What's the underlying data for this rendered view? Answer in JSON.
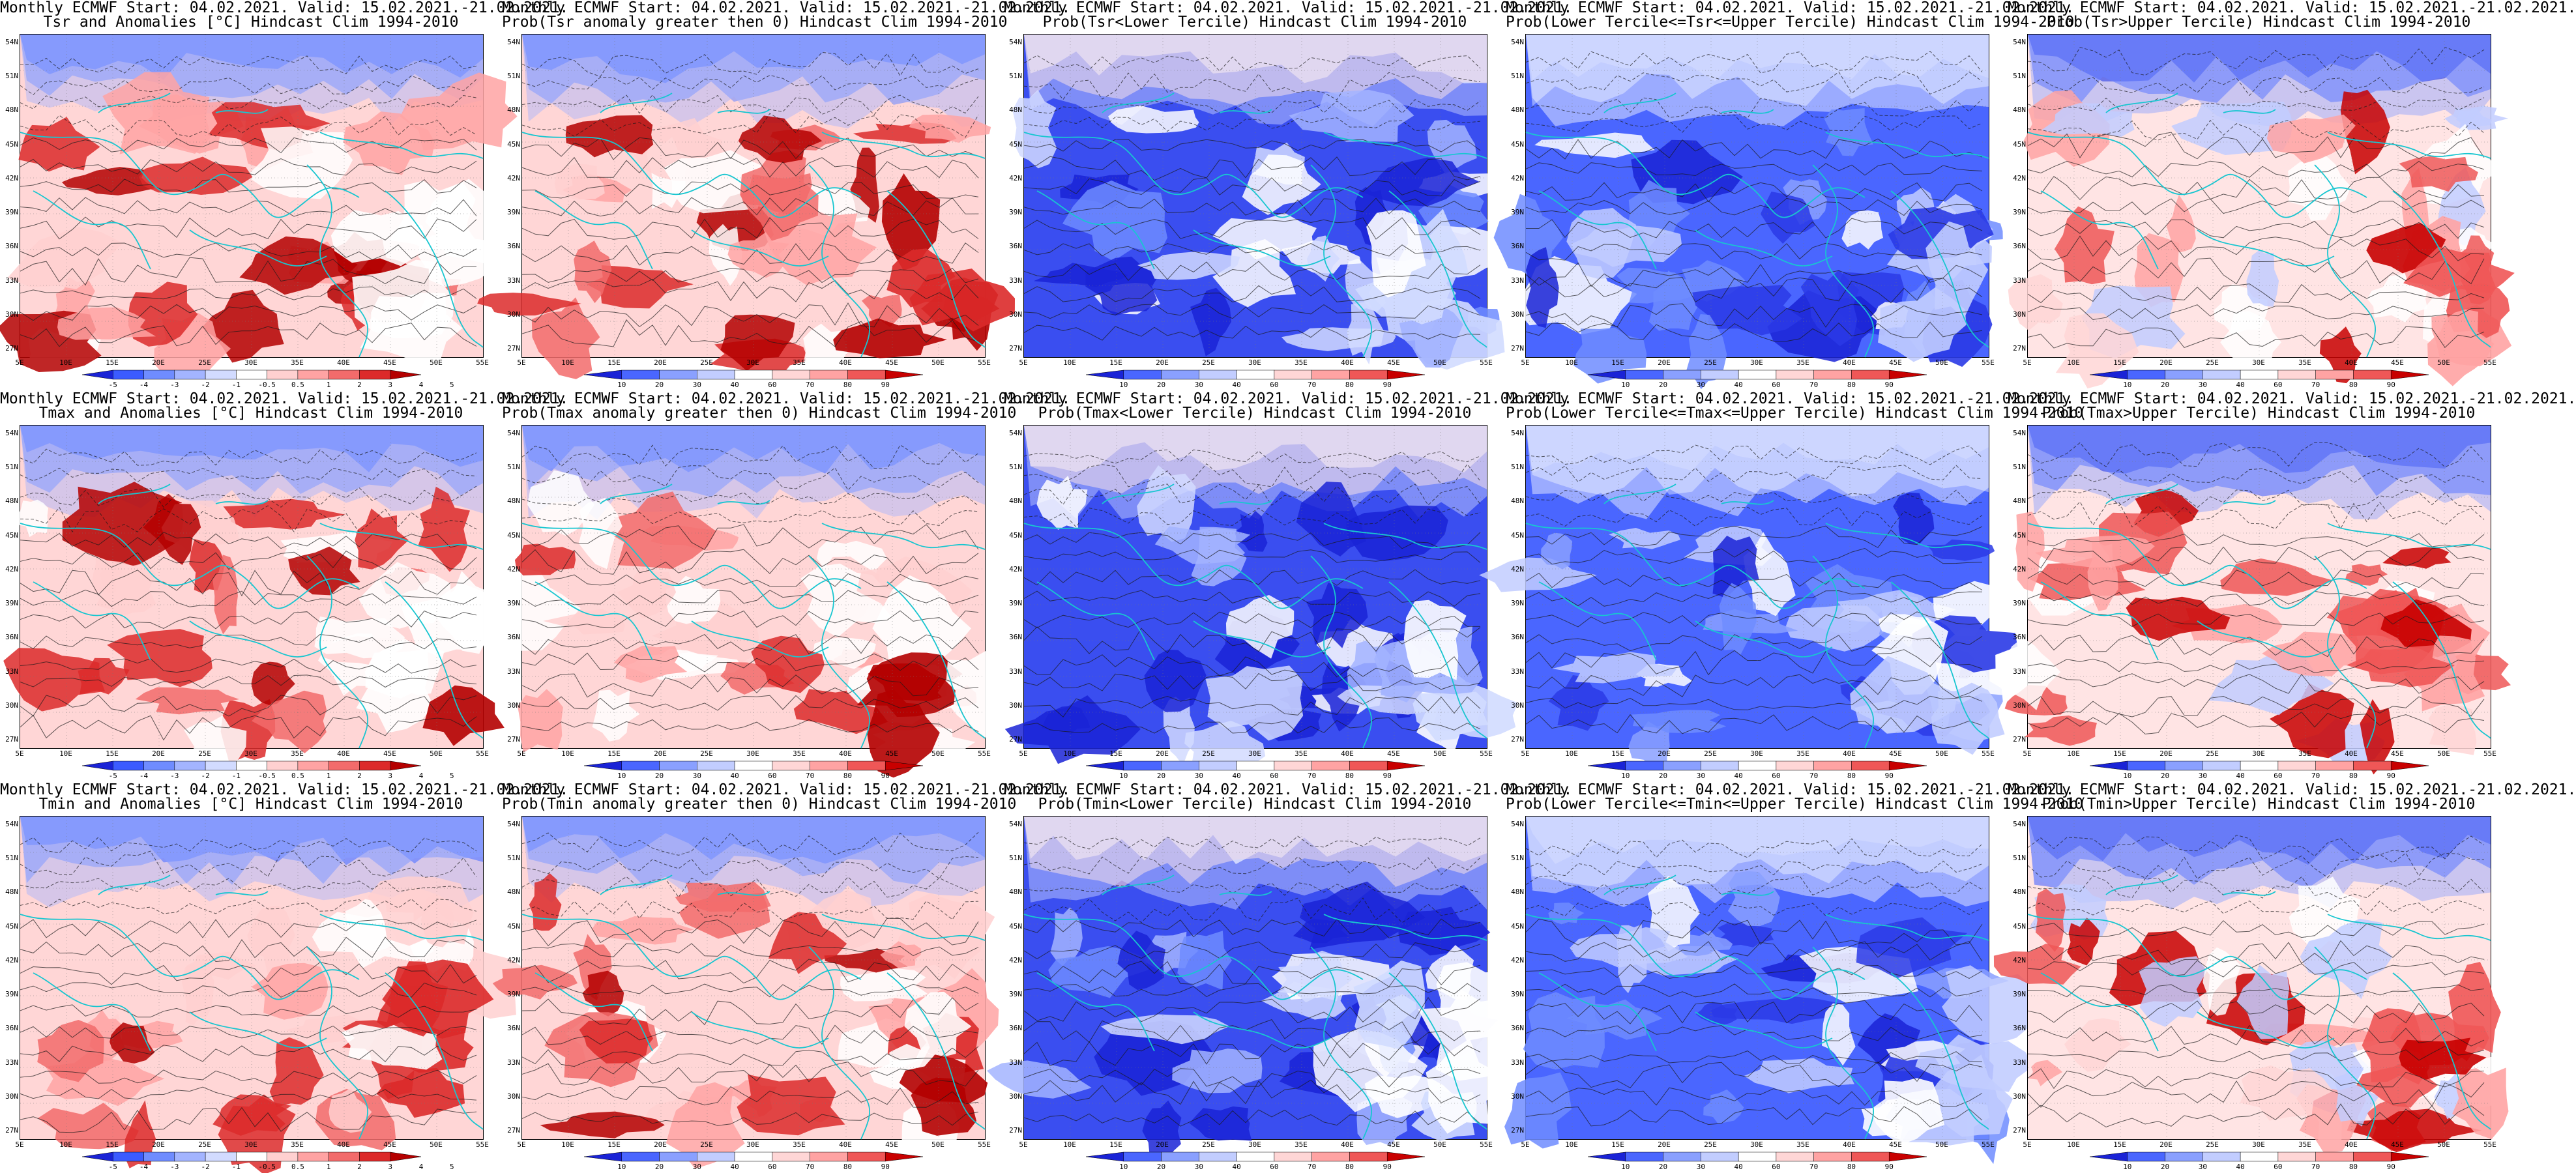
{
  "figure": {
    "latitudes": [
      "54N",
      "51N",
      "48N",
      "45N",
      "42N",
      "39N",
      "36N",
      "33N",
      "30N",
      "27N"
    ],
    "longitudes": [
      "5E",
      "10E",
      "15E",
      "20E",
      "25E",
      "30E",
      "35E",
      "40E",
      "45E",
      "50E",
      "55E"
    ],
    "colors": {
      "coast": "#18c6d0",
      "contour": "#1a1a1a",
      "anom_scale": [
        "#1a23d6",
        "#3b5bff",
        "#6f8cff",
        "#a3b4ff",
        "#d2dbff",
        "#ffffff",
        "#ffd0d0",
        "#ffa3a3",
        "#f26b6b",
        "#dc2a2a",
        "#b40000"
      ],
      "prob_scale": [
        "#1a23d6",
        "#4a66ff",
        "#8aa0ff",
        "#c2cdff",
        "#ffffff",
        "#ffd6d6",
        "#ffa3a3",
        "#ef5757",
        "#c80000"
      ]
    },
    "anom_ticks": [
      "-5",
      "-4",
      "-3",
      "-2",
      "-1",
      "-0.5",
      "0.5",
      "1",
      "2",
      "3",
      "4",
      "5"
    ],
    "prob_ticks": [
      "10",
      "20",
      "30",
      "40",
      "60",
      "70",
      "80",
      "90"
    ]
  },
  "panels": [
    {
      "line1": "Monthly ECMWF Start: 04.02.2021. Valid: 15.02.2021.-21.02.2021.",
      "line2": "Tsr and Anomalies [°C] Hindcast Clim 1994-2010",
      "scale": "anom",
      "style": "warm"
    },
    {
      "line1": "Monthly ECMWF Start: 04.02.2021. Valid: 15.02.2021.-21.02.2021.",
      "line2": "Prob(Tsr anomaly greater then 0) Hindcast Clim 1994-2010",
      "scale": "prob",
      "style": "warm"
    },
    {
      "line1": "Monthly ECMWF Start: 04.02.2021. Valid: 15.02.2021.-21.02.2021.",
      "line2": "Prob(Tsr<Lower Tercile) Hindcast Clim 1994-2010",
      "scale": "prob",
      "style": "cold"
    },
    {
      "line1": "Monthly ECMWF Start: 04.02.2021. Valid: 15.02.2021.-21.02.2021.",
      "line2": "Prob(Lower Tercile<=Tsr<=Upper Tercile) Hindcast Clim 1994-2010",
      "scale": "prob",
      "style": "mid"
    },
    {
      "line1": "Monthly ECMWF Start: 04.02.2021. Valid: 15.02.2021.-21.02.2021.",
      "line2": "Prob(Tsr>Upper Tercile) Hindcast Clim 1994-2010",
      "scale": "prob",
      "style": "upper"
    },
    {
      "line1": "Monthly ECMWF Start: 04.02.2021. Valid: 15.02.2021.-21.02.2021.",
      "line2": "Tmax and Anomalies [°C] Hindcast Clim 1994-2010",
      "scale": "anom",
      "style": "warm"
    },
    {
      "line1": "Monthly ECMWF Start: 04.02.2021. Valid: 15.02.2021.-21.02.2021.",
      "line2": "Prob(Tmax anomaly greater then 0) Hindcast Clim 1994-2010",
      "scale": "prob",
      "style": "warm"
    },
    {
      "line1": "Monthly ECMWF Start: 04.02.2021. Valid: 15.02.2021.-21.02.2021.",
      "line2": "Prob(Tmax<Lower Tercile) Hindcast Clim 1994-2010",
      "scale": "prob",
      "style": "cold"
    },
    {
      "line1": "Monthly ECMWF Start: 04.02.2021. Valid: 15.02.2021.-21.02.2021.",
      "line2": "Prob(Lower Tercile<=Tmax<=Upper Tercile) Hindcast Clim 1994-2010",
      "scale": "prob",
      "style": "mid"
    },
    {
      "line1": "Monthly ECMWF Start: 04.02.2021. Valid: 15.02.2021.-21.02.2021.",
      "line2": "Prob(Tmax>Upper Tercile) Hindcast Clim 1994-2010",
      "scale": "prob",
      "style": "upper"
    },
    {
      "line1": "Monthly ECMWF Start: 04.02.2021. Valid: 15.02.2021.-21.02.2021.",
      "line2": "Tmin and Anomalies [°C] Hindcast Clim 1994-2010",
      "scale": "anom",
      "style": "warm"
    },
    {
      "line1": "Monthly ECMWF Start: 04.02.2021. Valid: 15.02.2021.-21.02.2021.",
      "line2": "Prob(Tmin anomaly greater then 0) Hindcast Clim 1994-2010",
      "scale": "prob",
      "style": "warm"
    },
    {
      "line1": "Monthly ECMWF Start: 04.02.2021. Valid: 15.02.2021.-21.02.2021.",
      "line2": "Prob(Tmin<Lower Tercile) Hindcast Clim 1994-2010",
      "scale": "prob",
      "style": "cold"
    },
    {
      "line1": "Monthly ECMWF Start: 04.02.2021. Valid: 15.02.2021.-21.02.2021.",
      "line2": "Prob(Lower Tercile<=Tmin<=Upper Tercile) Hindcast Clim 1994-2010",
      "scale": "prob",
      "style": "mid"
    },
    {
      "line1": "Monthly ECMWF Start: 04.02.2021. Valid: 15.02.2021.-21.02.2021.",
      "line2": "Prob(Tmin>Upper Tercile) Hindcast Clim 1994-2010",
      "scale": "prob",
      "style": "upper"
    }
  ]
}
